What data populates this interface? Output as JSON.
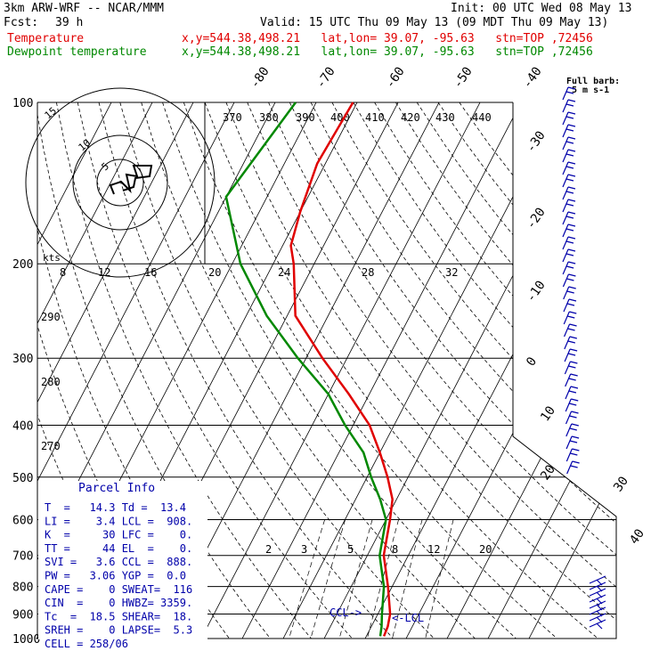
{
  "header": {
    "title": "3km ARW-WRF -- NCAR/MMM",
    "init": "Init: 00 UTC Wed 08 May 13",
    "fcst_label": "Fcst:",
    "fcst_value": "39 h",
    "valid": "Valid: 15 UTC Thu 09 May 13 (09 MDT Thu 09 May 13)",
    "temp_label": "Temperature",
    "temp_info": "x,y=544.38,498.21   lat,lon= 39.07, -95.63   stn=TOP ,72456",
    "dew_label": "Dewpoint temperature",
    "dew_info": "x,y=544.38,498.21   lat,lon= 39.07, -95.63   stn=TOP ,72456"
  },
  "colors": {
    "temperature": "#e00000",
    "dewpoint": "#008800",
    "parcel_text": "#0000aa",
    "barbs": "#0000aa"
  },
  "chart_data": {
    "type": "line",
    "pressure_levels": [
      100,
      200,
      300,
      400,
      500,
      600,
      700,
      800,
      900,
      1000
    ],
    "skewed_isotherms": [
      "-80",
      "-70",
      "-60",
      "-50",
      "-40",
      "-30",
      "-20",
      "-10",
      "0",
      "10",
      "20",
      "30",
      "40"
    ],
    "theta_labels": [
      "370",
      "380",
      "390",
      "400",
      "410",
      "420",
      "430",
      "440"
    ],
    "theta_left_labels": [
      "290",
      "280",
      "270"
    ],
    "mixing_ratio_labels": [
      "2",
      "3",
      "5",
      "8",
      "12",
      "20"
    ],
    "hodograph": {
      "kts_label": "kts",
      "rings": [
        "5",
        "10",
        "15"
      ],
      "speed_ticks": [
        "8",
        "12",
        "16",
        "20",
        "24",
        "28",
        "32"
      ]
    },
    "barb_legend": "Full barb:\n5 m s-1",
    "lcl_label": "<-LCL",
    "ccl_label": "CCL->",
    "series": [
      {
        "name": "Temperature",
        "points": [
          [
            100,
            -61
          ],
          [
            130,
            -62
          ],
          [
            160,
            -60
          ],
          [
            185,
            -58
          ],
          [
            200,
            -55
          ],
          [
            250,
            -48
          ],
          [
            300,
            -36
          ],
          [
            350,
            -25
          ],
          [
            400,
            -16
          ],
          [
            450,
            -10
          ],
          [
            500,
            -5
          ],
          [
            550,
            -1
          ],
          [
            600,
            1
          ],
          [
            700,
            4
          ],
          [
            800,
            9
          ],
          [
            900,
            13
          ],
          [
            950,
            14
          ],
          [
            990,
            14.3
          ]
        ]
      },
      {
        "name": "Dewpoint temperature",
        "points": [
          [
            100,
            -75
          ],
          [
            150,
            -80
          ],
          [
            200,
            -68
          ],
          [
            250,
            -55
          ],
          [
            300,
            -42
          ],
          [
            350,
            -30
          ],
          [
            400,
            -22
          ],
          [
            450,
            -14
          ],
          [
            500,
            -9
          ],
          [
            550,
            -4
          ],
          [
            600,
            0
          ],
          [
            700,
            3
          ],
          [
            800,
            8
          ],
          [
            900,
            11
          ],
          [
            950,
            12.5
          ],
          [
            990,
            13.4
          ]
        ]
      }
    ]
  },
  "parcel": {
    "title": "Parcel Info",
    "rows": [
      [
        "T  =   14.3 Td =  13.4"
      ],
      [
        "LI =    3.4 LCL =  908."
      ],
      [
        "K  =     30 LFC =    0."
      ],
      [
        "TT =     44 EL  =    0."
      ],
      [
        "SVI =   3.6 CCL =  888."
      ],
      [
        "PW =   3.06 YGP =  0.0"
      ],
      [
        "CAPE =    0 SWEAT=  116"
      ],
      [
        "CIN  =    0 HWBZ= 3359."
      ],
      [
        "Tc  =  18.5 SHEAR=  18."
      ],
      [
        "SREH =    0 LAPSE=  5.3"
      ],
      [
        "CELL = 258/06"
      ]
    ]
  }
}
